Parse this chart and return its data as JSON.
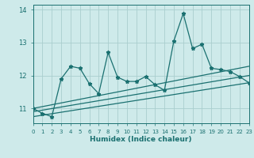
{
  "xlabel": "Humidex (Indice chaleur)",
  "xlim": [
    0,
    23
  ],
  "ylim": [
    10.55,
    14.15
  ],
  "yticks": [
    11,
    12,
    13,
    14
  ],
  "xticks": [
    0,
    1,
    2,
    3,
    4,
    5,
    6,
    7,
    8,
    9,
    10,
    11,
    12,
    13,
    14,
    15,
    16,
    17,
    18,
    19,
    20,
    21,
    22,
    23
  ],
  "bg_color": "#ceeaea",
  "grid_color": "#aacece",
  "line_color": "#1a7070",
  "main_x": [
    0,
    1,
    2,
    3,
    4,
    5,
    6,
    7,
    8,
    9,
    10,
    11,
    12,
    13,
    14,
    15,
    16,
    17,
    18,
    19,
    20,
    21,
    22,
    23
  ],
  "main_y": [
    11.0,
    10.85,
    10.75,
    11.9,
    12.28,
    12.22,
    11.75,
    11.45,
    12.7,
    11.95,
    11.82,
    11.82,
    11.97,
    11.72,
    11.55,
    13.05,
    13.88,
    12.82,
    12.95,
    12.22,
    12.18,
    12.12,
    11.97,
    11.78
  ],
  "line1_x": [
    0,
    23
  ],
  "line1_y": [
    11.0,
    12.28
  ],
  "line2_x": [
    0,
    23
  ],
  "line2_y": [
    10.9,
    12.0
  ],
  "line3_x": [
    0,
    23
  ],
  "line3_y": [
    10.75,
    11.78
  ]
}
